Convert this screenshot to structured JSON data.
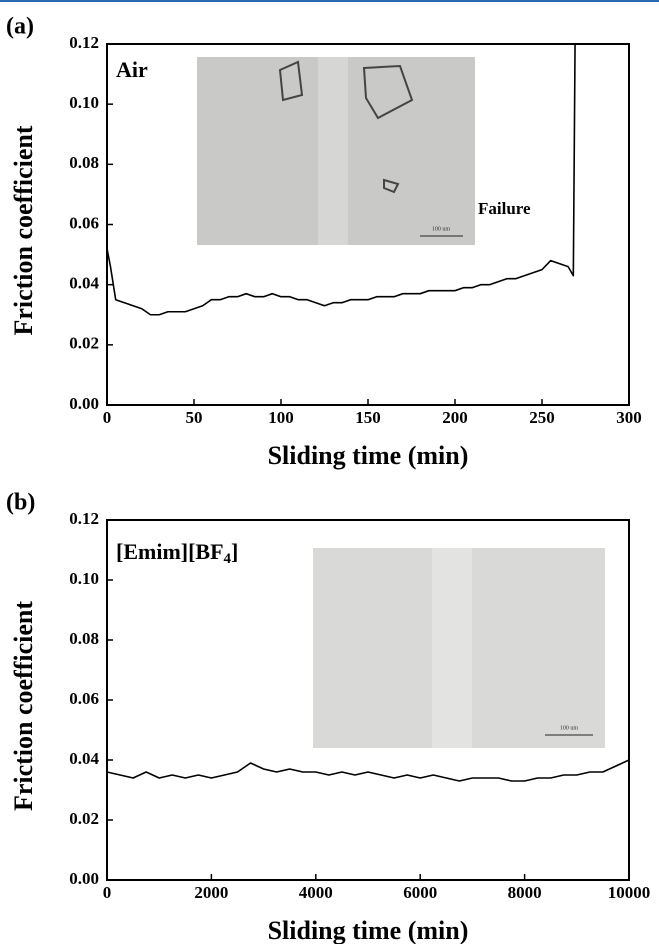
{
  "chart_data": [
    {
      "type": "line",
      "panel": "(a)",
      "xlabel": "Sliding time (min)",
      "ylabel": "Friction coefficient",
      "annotations": [
        "Air",
        "Failure"
      ],
      "inset_label": "100 um",
      "color": "#000000",
      "x": [
        0,
        2,
        5,
        10,
        15,
        20,
        25,
        30,
        35,
        40,
        45,
        50,
        55,
        60,
        65,
        70,
        75,
        80,
        85,
        90,
        95,
        100,
        105,
        110,
        115,
        120,
        125,
        130,
        135,
        140,
        145,
        150,
        155,
        160,
        165,
        170,
        175,
        180,
        185,
        190,
        195,
        200,
        205,
        210,
        215,
        220,
        225,
        230,
        235,
        240,
        245,
        250,
        255,
        260,
        265,
        268,
        269
      ],
      "values": [
        0.052,
        0.046,
        0.035,
        0.034,
        0.033,
        0.032,
        0.03,
        0.03,
        0.031,
        0.031,
        0.031,
        0.032,
        0.033,
        0.035,
        0.035,
        0.036,
        0.036,
        0.037,
        0.036,
        0.036,
        0.037,
        0.036,
        0.036,
        0.035,
        0.035,
        0.034,
        0.033,
        0.034,
        0.034,
        0.035,
        0.035,
        0.035,
        0.036,
        0.036,
        0.036,
        0.037,
        0.037,
        0.037,
        0.038,
        0.038,
        0.038,
        0.038,
        0.039,
        0.039,
        0.04,
        0.04,
        0.041,
        0.042,
        0.042,
        0.043,
        0.044,
        0.045,
        0.048,
        0.047,
        0.046,
        0.043,
        0.12
      ],
      "xlim": [
        0,
        300
      ],
      "xticks": [
        0,
        50,
        100,
        150,
        200,
        250,
        300
      ],
      "ylim": [
        0,
        0.12
      ],
      "yticks": [
        {
          "value": 0,
          "label": "0.00"
        },
        0.02,
        0.04,
        0.06,
        0.08,
        {
          "value": 0.1,
          "label": "0.10"
        },
        0.12
      ],
      "grid": false
    },
    {
      "type": "line",
      "panel": "(b)",
      "xlabel": "Sliding time (min)",
      "ylabel": "Friction coefficient",
      "annotations": [
        "[Emim][BF4]"
      ],
      "inset_label": "100 um",
      "color": "#000000",
      "x": [
        0,
        250,
        500,
        750,
        1000,
        1250,
        1500,
        1750,
        2000,
        2250,
        2500,
        2750,
        3000,
        3250,
        3500,
        3750,
        4000,
        4250,
        4500,
        4750,
        5000,
        5250,
        5500,
        5750,
        6000,
        6250,
        6500,
        6750,
        7000,
        7250,
        7500,
        7750,
        8000,
        8250,
        8500,
        8750,
        9000,
        9250,
        9500,
        9750,
        10000
      ],
      "values": [
        0.036,
        0.035,
        0.034,
        0.036,
        0.034,
        0.035,
        0.034,
        0.035,
        0.034,
        0.035,
        0.036,
        0.039,
        0.037,
        0.036,
        0.037,
        0.036,
        0.036,
        0.035,
        0.036,
        0.035,
        0.036,
        0.035,
        0.034,
        0.035,
        0.034,
        0.035,
        0.034,
        0.033,
        0.034,
        0.034,
        0.034,
        0.033,
        0.033,
        0.034,
        0.034,
        0.035,
        0.035,
        0.036,
        0.036,
        0.038,
        0.04
      ],
      "xlim": [
        0,
        10000
      ],
      "xticks": [
        0,
        2000,
        4000,
        6000,
        8000,
        10000
      ],
      "ylim": [
        0,
        0.12
      ],
      "yticks": [
        {
          "value": 0,
          "label": "0.00"
        },
        0.02,
        0.04,
        0.06,
        0.08,
        {
          "value": 0.1,
          "label": "0.10"
        },
        0.12
      ],
      "grid": false
    }
  ]
}
